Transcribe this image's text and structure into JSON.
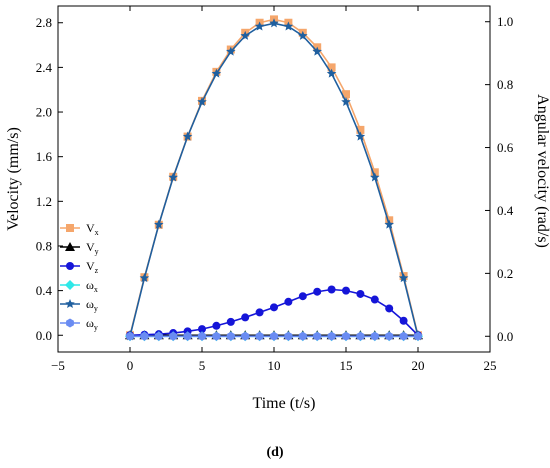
{
  "chart_data": {
    "type": "line",
    "panel_label": "(d)",
    "xlabel": "Time (t/s)",
    "ylabel_left": "Velocity (mm/s)",
    "ylabel_right": "Angular velocity (rad/s)",
    "xlim": [
      -5,
      25
    ],
    "ylim_left": [
      -0.15,
      2.95
    ],
    "ylim_right": [
      -0.05,
      1.05
    ],
    "x_ticks": [
      -5,
      0,
      5,
      10,
      15,
      20,
      25
    ],
    "y_left_ticks": [
      "0.0",
      "0.4",
      "0.8",
      "1.2",
      "1.6",
      "2.0",
      "2.4",
      "2.8"
    ],
    "y_right_ticks": [
      "0.0",
      "0.2",
      "0.4",
      "0.6",
      "0.8",
      "1.0"
    ],
    "legend_position": "left",
    "grid": false,
    "x": [
      0,
      1,
      2,
      3,
      4,
      5,
      6,
      7,
      8,
      9,
      10,
      11,
      12,
      13,
      14,
      15,
      16,
      17,
      18,
      19,
      20
    ],
    "series": [
      {
        "name": "Vx",
        "base": "V",
        "sub": "x",
        "axis": "left",
        "marker": "square",
        "color": "#f5a66b",
        "values": [
          0.0,
          0.52,
          0.99,
          1.42,
          1.78,
          2.1,
          2.36,
          2.56,
          2.71,
          2.8,
          2.83,
          2.8,
          2.71,
          2.58,
          2.4,
          2.16,
          1.84,
          1.46,
          1.03,
          0.53,
          0.0
        ]
      },
      {
        "name": "Vy",
        "base": "V",
        "sub": "y",
        "axis": "left",
        "marker": "triangle",
        "color": "#000000",
        "values": [
          0.0,
          0.0,
          0.0,
          0.0,
          0.0,
          0.0,
          0.0,
          0.0,
          0.0,
          0.0,
          0.0,
          0.0,
          0.0,
          0.0,
          0.0,
          0.0,
          0.0,
          0.0,
          0.0,
          0.0,
          0.0
        ]
      },
      {
        "name": "Vz",
        "base": "V",
        "sub": "z",
        "axis": "left",
        "marker": "circle",
        "color": "#1515d8",
        "values": [
          0.0,
          0.005,
          0.01,
          0.02,
          0.035,
          0.055,
          0.085,
          0.12,
          0.16,
          0.205,
          0.25,
          0.3,
          0.35,
          0.39,
          0.41,
          0.4,
          0.37,
          0.32,
          0.24,
          0.13,
          0.0
        ]
      },
      {
        "name": "ωx",
        "base": "ω",
        "sub": "x",
        "axis": "right",
        "marker": "diamond",
        "color": "#2ee8e8",
        "values": [
          0.0,
          0.0,
          0.0,
          0.0,
          0.0,
          0.0,
          0.0,
          0.0,
          0.0,
          0.0,
          0.0,
          0.0,
          0.0,
          0.0,
          0.0,
          0.0,
          0.0,
          0.0,
          0.0,
          0.0,
          0.0
        ]
      },
      {
        "name": "ωy",
        "base": "ω",
        "sub": "y",
        "axis": "right",
        "marker": "star",
        "color": "#1f5f9f",
        "values": [
          0.0,
          0.185,
          0.355,
          0.505,
          0.635,
          0.745,
          0.835,
          0.905,
          0.955,
          0.985,
          0.995,
          0.985,
          0.955,
          0.905,
          0.835,
          0.745,
          0.635,
          0.505,
          0.355,
          0.185,
          0.0
        ]
      },
      {
        "name": "ωy",
        "base": "ω",
        "sub": "y",
        "axis": "right",
        "marker": "hexagon",
        "color": "#6a8cf2",
        "values": [
          0.0,
          0.0,
          0.0,
          0.0,
          0.0,
          0.0,
          0.0,
          0.0,
          0.0,
          0.0,
          0.0,
          0.0,
          0.0,
          0.0,
          0.0,
          0.0,
          0.0,
          0.0,
          0.0,
          0.0,
          0.0
        ]
      }
    ]
  }
}
